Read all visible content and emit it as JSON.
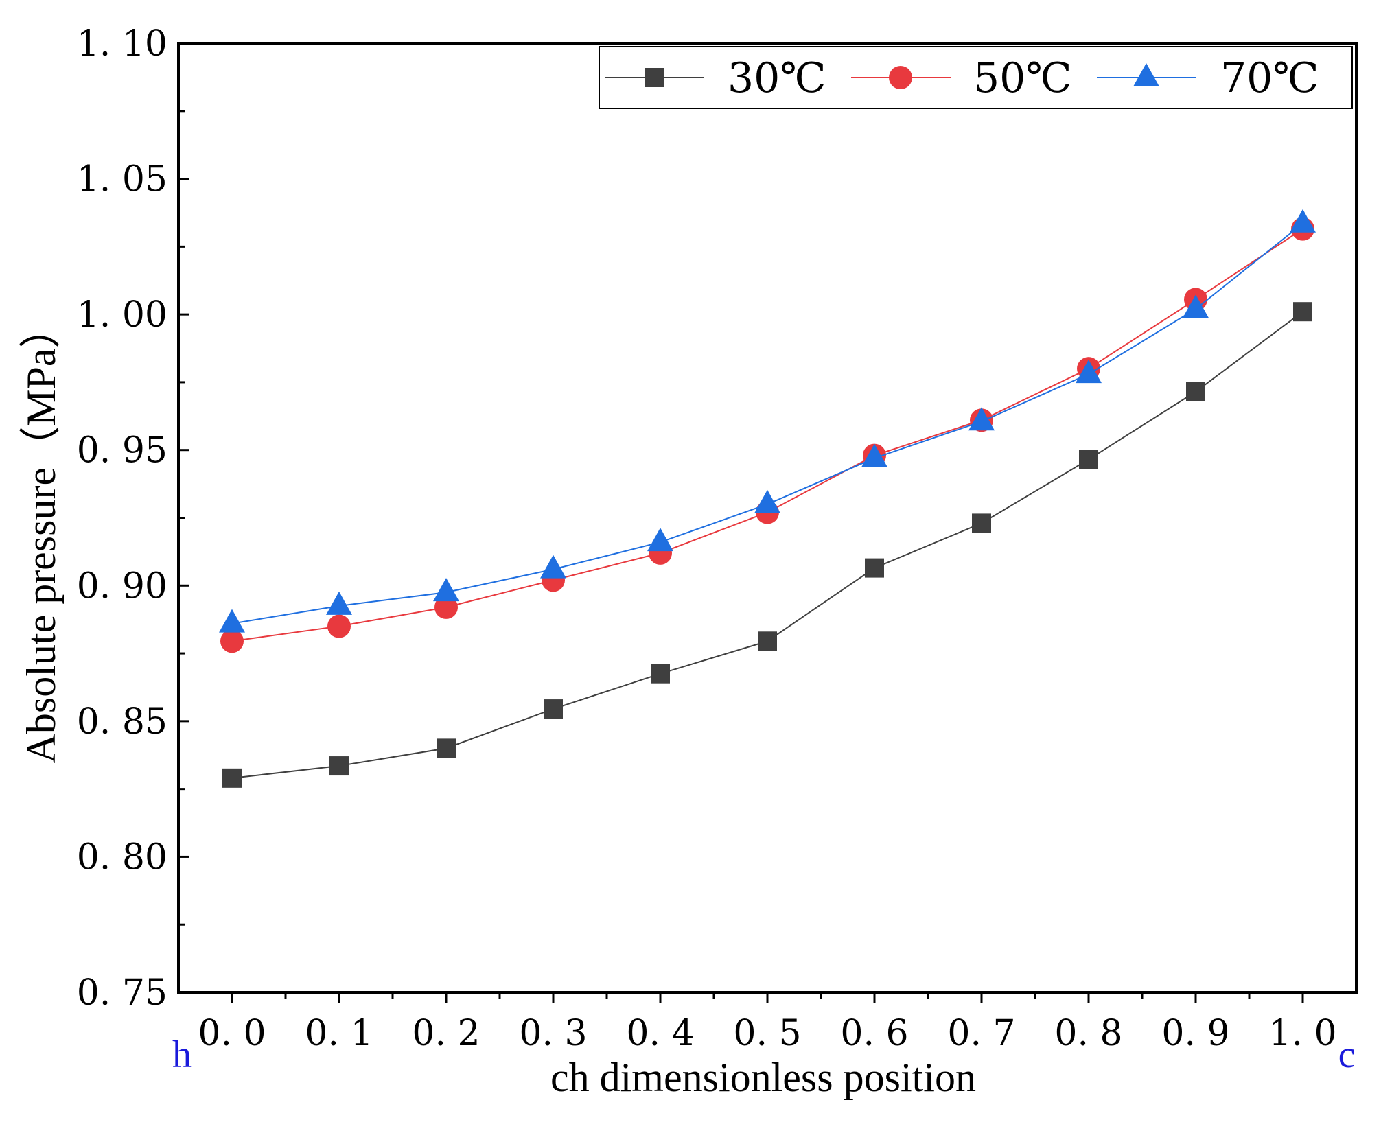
{
  "chart_data": {
    "type": "line",
    "title": "",
    "xlabel": "ch dimensionless position",
    "ylabel": "Absolute pressure（MPa）",
    "x": [
      0.0,
      0.1,
      0.2,
      0.3,
      0.4,
      0.5,
      0.6,
      0.7,
      0.8,
      0.9,
      1.0
    ],
    "x_tick_labels": [
      "0. 0",
      "0. 1",
      "0. 2",
      "0. 3",
      "0. 4",
      "0. 5",
      "0. 6",
      "0. 7",
      "0. 8",
      "0. 9",
      "1. 0"
    ],
    "xlim": [
      -0.05,
      1.05
    ],
    "ylim": [
      0.75,
      1.1
    ],
    "y_ticks": [
      0.75,
      0.8,
      0.85,
      0.9,
      0.95,
      1.0,
      1.05,
      1.1
    ],
    "y_tick_labels": [
      "0. 75",
      "0. 80",
      "0. 85",
      "0. 90",
      "0. 95",
      "1. 00",
      "1. 05",
      "1. 10"
    ],
    "grid": false,
    "legend_position": "top-right",
    "end_labels": {
      "left": "h",
      "right": "c",
      "color": "#1a1adb"
    },
    "series": [
      {
        "name": "30℃",
        "marker": "square",
        "color": "#3f3f3f",
        "values": [
          0.829,
          0.8335,
          0.84,
          0.8545,
          0.8675,
          0.8795,
          0.9065,
          0.923,
          0.9465,
          0.9715,
          1.001
        ]
      },
      {
        "name": "50℃",
        "marker": "circle",
        "color": "#e8393e",
        "values": [
          0.8795,
          0.885,
          0.892,
          0.902,
          0.912,
          0.927,
          0.948,
          0.961,
          0.98,
          1.0055,
          1.0315
        ]
      },
      {
        "name": "70℃",
        "marker": "triangle",
        "color": "#1f6fe0",
        "values": [
          0.886,
          0.8925,
          0.8975,
          0.906,
          0.916,
          0.93,
          0.947,
          0.9605,
          0.978,
          1.002,
          1.0335
        ]
      }
    ]
  }
}
